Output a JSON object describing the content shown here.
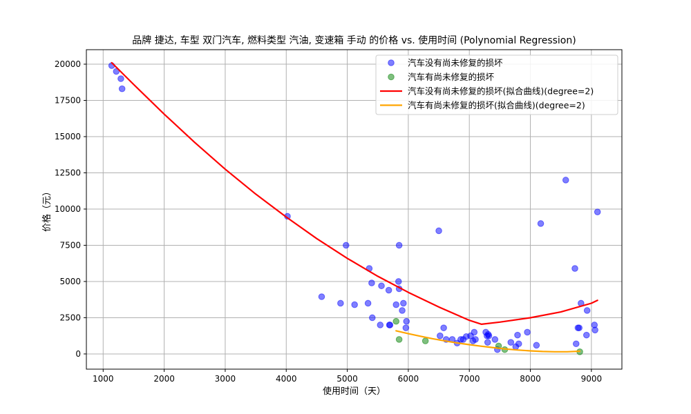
{
  "chart_data": {
    "type": "scatter",
    "title": "品牌 捷达, 车型 双门汽车, 燃料类型 汽油, 变速箱 手动 的价格 vs. 使用时间 (Polynomial Regression)",
    "xlabel": "使用时间（天）",
    "ylabel": "价格（元）",
    "xlim": [
      725,
      9500
    ],
    "ylim": [
      -1050,
      21000
    ],
    "xticks": [
      1000,
      2000,
      3000,
      4000,
      5000,
      6000,
      7000,
      8000,
      9000
    ],
    "yticks": [
      0,
      2500,
      5000,
      7500,
      10000,
      12500,
      15000,
      17500,
      20000
    ],
    "grid": true,
    "legend_position": "top-right",
    "series": [
      {
        "name": "汽车没有尚未修复的损坏",
        "kind": "scatter",
        "color": "#0000ff",
        "points": [
          [
            1140,
            19900
          ],
          [
            1215,
            19500
          ],
          [
            1290,
            19000
          ],
          [
            1310,
            18300
          ],
          [
            4020,
            9500
          ],
          [
            4580,
            3950
          ],
          [
            4890,
            3500
          ],
          [
            4980,
            7500
          ],
          [
            5120,
            3400
          ],
          [
            5340,
            3500
          ],
          [
            5360,
            5900
          ],
          [
            5400,
            4900
          ],
          [
            5410,
            2500
          ],
          [
            5540,
            2000
          ],
          [
            5560,
            4700
          ],
          [
            5680,
            4400
          ],
          [
            5690,
            2000
          ],
          [
            5700,
            2000
          ],
          [
            5800,
            3400
          ],
          [
            5840,
            5000
          ],
          [
            5850,
            4500
          ],
          [
            5850,
            7500
          ],
          [
            5900,
            3000
          ],
          [
            5920,
            3500
          ],
          [
            5960,
            1800
          ],
          [
            5970,
            2250
          ],
          [
            6500,
            8500
          ],
          [
            6520,
            1250
          ],
          [
            6580,
            1800
          ],
          [
            6620,
            1000
          ],
          [
            6720,
            1000
          ],
          [
            6800,
            750
          ],
          [
            6860,
            1000
          ],
          [
            6900,
            1000
          ],
          [
            6950,
            1200
          ],
          [
            7020,
            1250
          ],
          [
            7060,
            900
          ],
          [
            7080,
            1500
          ],
          [
            7100,
            1000
          ],
          [
            7270,
            1500
          ],
          [
            7290,
            1250
          ],
          [
            7300,
            800
          ],
          [
            7310,
            1350
          ],
          [
            7320,
            1250
          ],
          [
            7420,
            1000
          ],
          [
            7460,
            300
          ],
          [
            7680,
            800
          ],
          [
            7760,
            500
          ],
          [
            7790,
            1300
          ],
          [
            7810,
            700
          ],
          [
            7950,
            1500
          ],
          [
            8100,
            600
          ],
          [
            8170,
            9000
          ],
          [
            8580,
            12000
          ],
          [
            8730,
            5900
          ],
          [
            8750,
            700
          ],
          [
            8780,
            1800
          ],
          [
            8800,
            1800
          ],
          [
            8830,
            3500
          ],
          [
            8920,
            1300
          ],
          [
            8930,
            3000
          ],
          [
            9050,
            2000
          ],
          [
            9060,
            1650
          ],
          [
            9100,
            9800
          ]
        ]
      },
      {
        "name": "汽车有尚未修复的损坏",
        "kind": "scatter",
        "color": "#008000",
        "points": [
          [
            5800,
            2250
          ],
          [
            5850,
            1000
          ],
          [
            6280,
            900
          ],
          [
            7480,
            550
          ],
          [
            7580,
            300
          ],
          [
            8810,
            150
          ]
        ]
      },
      {
        "name": "汽车没有尚未修复的损坏(拟合曲线)(degree=2)",
        "kind": "line",
        "color": "#ff0000",
        "x": [
          1140,
          1500,
          2000,
          2500,
          3000,
          3500,
          4000,
          4500,
          5000,
          5500,
          6000,
          6500,
          7000,
          7200,
          7500,
          8000,
          8500,
          9000,
          9100
        ],
        "y": [
          20100,
          18600,
          16550,
          14600,
          12750,
          11030,
          9450,
          7960,
          6600,
          5360,
          4250,
          3240,
          2320,
          2050,
          2200,
          2500,
          2900,
          3500,
          3700
        ]
      },
      {
        "name": "汽车有尚未修复的损坏(拟合曲线)(degree=2)",
        "kind": "line",
        "color": "#ffa500",
        "x": [
          5800,
          6000,
          6200,
          6400,
          6600,
          6800,
          7000,
          7200,
          7400,
          7600,
          7800,
          8000,
          8200,
          8400,
          8600,
          8810
        ],
        "y": [
          1600,
          1400,
          1220,
          1050,
          900,
          760,
          640,
          530,
          430,
          340,
          270,
          210,
          170,
          150,
          150,
          190
        ]
      }
    ]
  }
}
